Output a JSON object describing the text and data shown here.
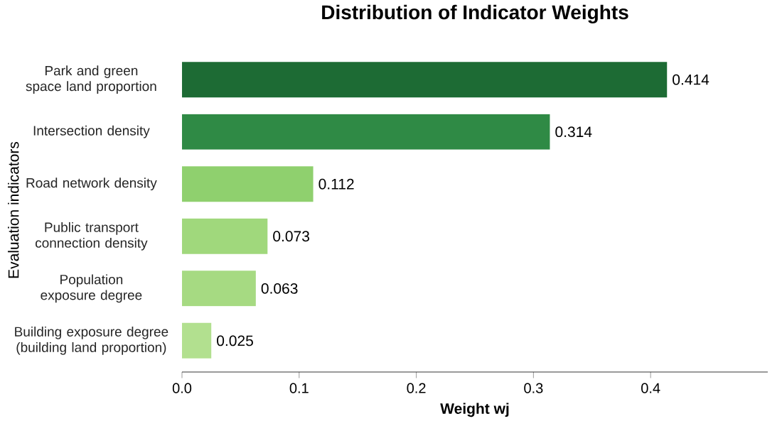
{
  "chart_data": {
    "type": "bar",
    "orientation": "horizontal",
    "title": "Distribution of Indicator Weights",
    "xlabel": "Weight wj",
    "ylabel": "Evaluation indicators",
    "categories": [
      "Park and green space land proportion",
      "Intersection density",
      "Road network density",
      "Public transport connection density",
      "Population exposure degree",
      "Building exposure degree (building land proportion)"
    ],
    "values": [
      0.414,
      0.314,
      0.112,
      0.073,
      0.063,
      0.025
    ],
    "colors": [
      "#1d6b34",
      "#2f8a45",
      "#8fd06e",
      "#a0d87c",
      "#a6da82",
      "#b2e08f"
    ],
    "data_labels": true,
    "grid": false,
    "xlim": [
      0,
      0.5
    ],
    "xticks": [
      {
        "value": 0,
        "label": "0.0"
      },
      0.1,
      0.2,
      0.3,
      0.4
    ]
  }
}
